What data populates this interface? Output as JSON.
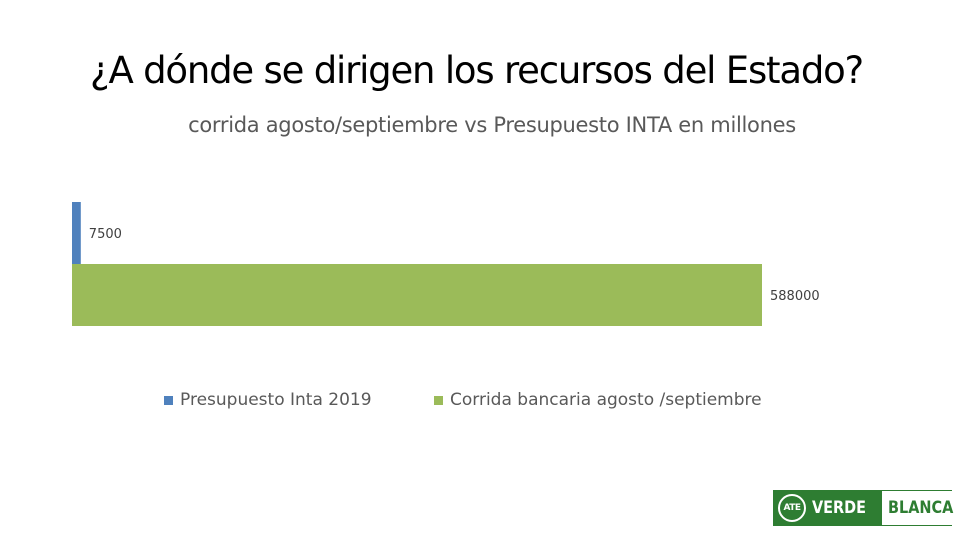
{
  "slide": {
    "title": "¿A dónde se dirigen los recursos del Estado?"
  },
  "chart_data": {
    "type": "bar",
    "orientation": "horizontal",
    "title": "corrida agosto/septiembre vs Presupuesto INTA en millones",
    "xlabel": "",
    "ylabel": "",
    "grid": false,
    "legend": "bottom",
    "xlim": [
      0,
      588000
    ],
    "series": [
      {
        "name": "Presupuesto Inta 2019",
        "values": [
          7500
        ],
        "color": "#4f81bd",
        "label": "7500"
      },
      {
        "name": "Corrida bancaria agosto /septiembre",
        "values": [
          588000
        ],
        "color": "#9bbb59",
        "label": "588000"
      }
    ]
  },
  "logo": {
    "mark": "ATE",
    "left_text": "VERDE",
    "right_text": "BLANCA",
    "colors": {
      "green": "#2e7d32",
      "white": "#ffffff"
    }
  }
}
